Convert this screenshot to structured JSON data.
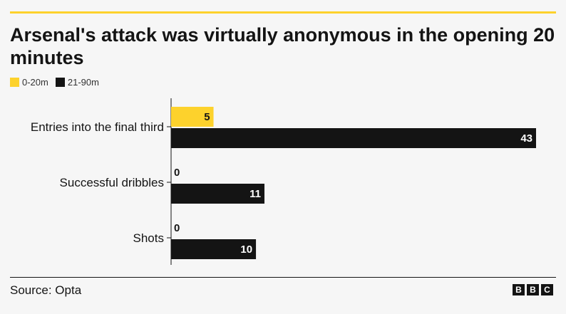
{
  "colors": {
    "accent": "#fdd22c",
    "dark": "#141414"
  },
  "header": {
    "title": "Arsenal's attack was virtually anonymous in the opening 20 minutes"
  },
  "legend": [
    {
      "label": "0-20m",
      "color": "#fdd22c"
    },
    {
      "label": "21-90m",
      "color": "#141414"
    }
  ],
  "chart_data": {
    "type": "bar",
    "orientation": "horizontal",
    "categories": [
      "Entries into the final third",
      "Successful dribbles",
      "Shots"
    ],
    "series": [
      {
        "name": "0-20m",
        "color": "#fdd22c",
        "values": [
          5,
          0,
          0
        ]
      },
      {
        "name": "21-90m",
        "color": "#141414",
        "values": [
          43,
          11,
          10
        ]
      }
    ],
    "xlim": [
      0,
      43
    ],
    "grid": false,
    "legend_position": "top-left"
  },
  "footer": {
    "source": "Source: Opta",
    "logo_letters": [
      "B",
      "B",
      "C"
    ]
  }
}
